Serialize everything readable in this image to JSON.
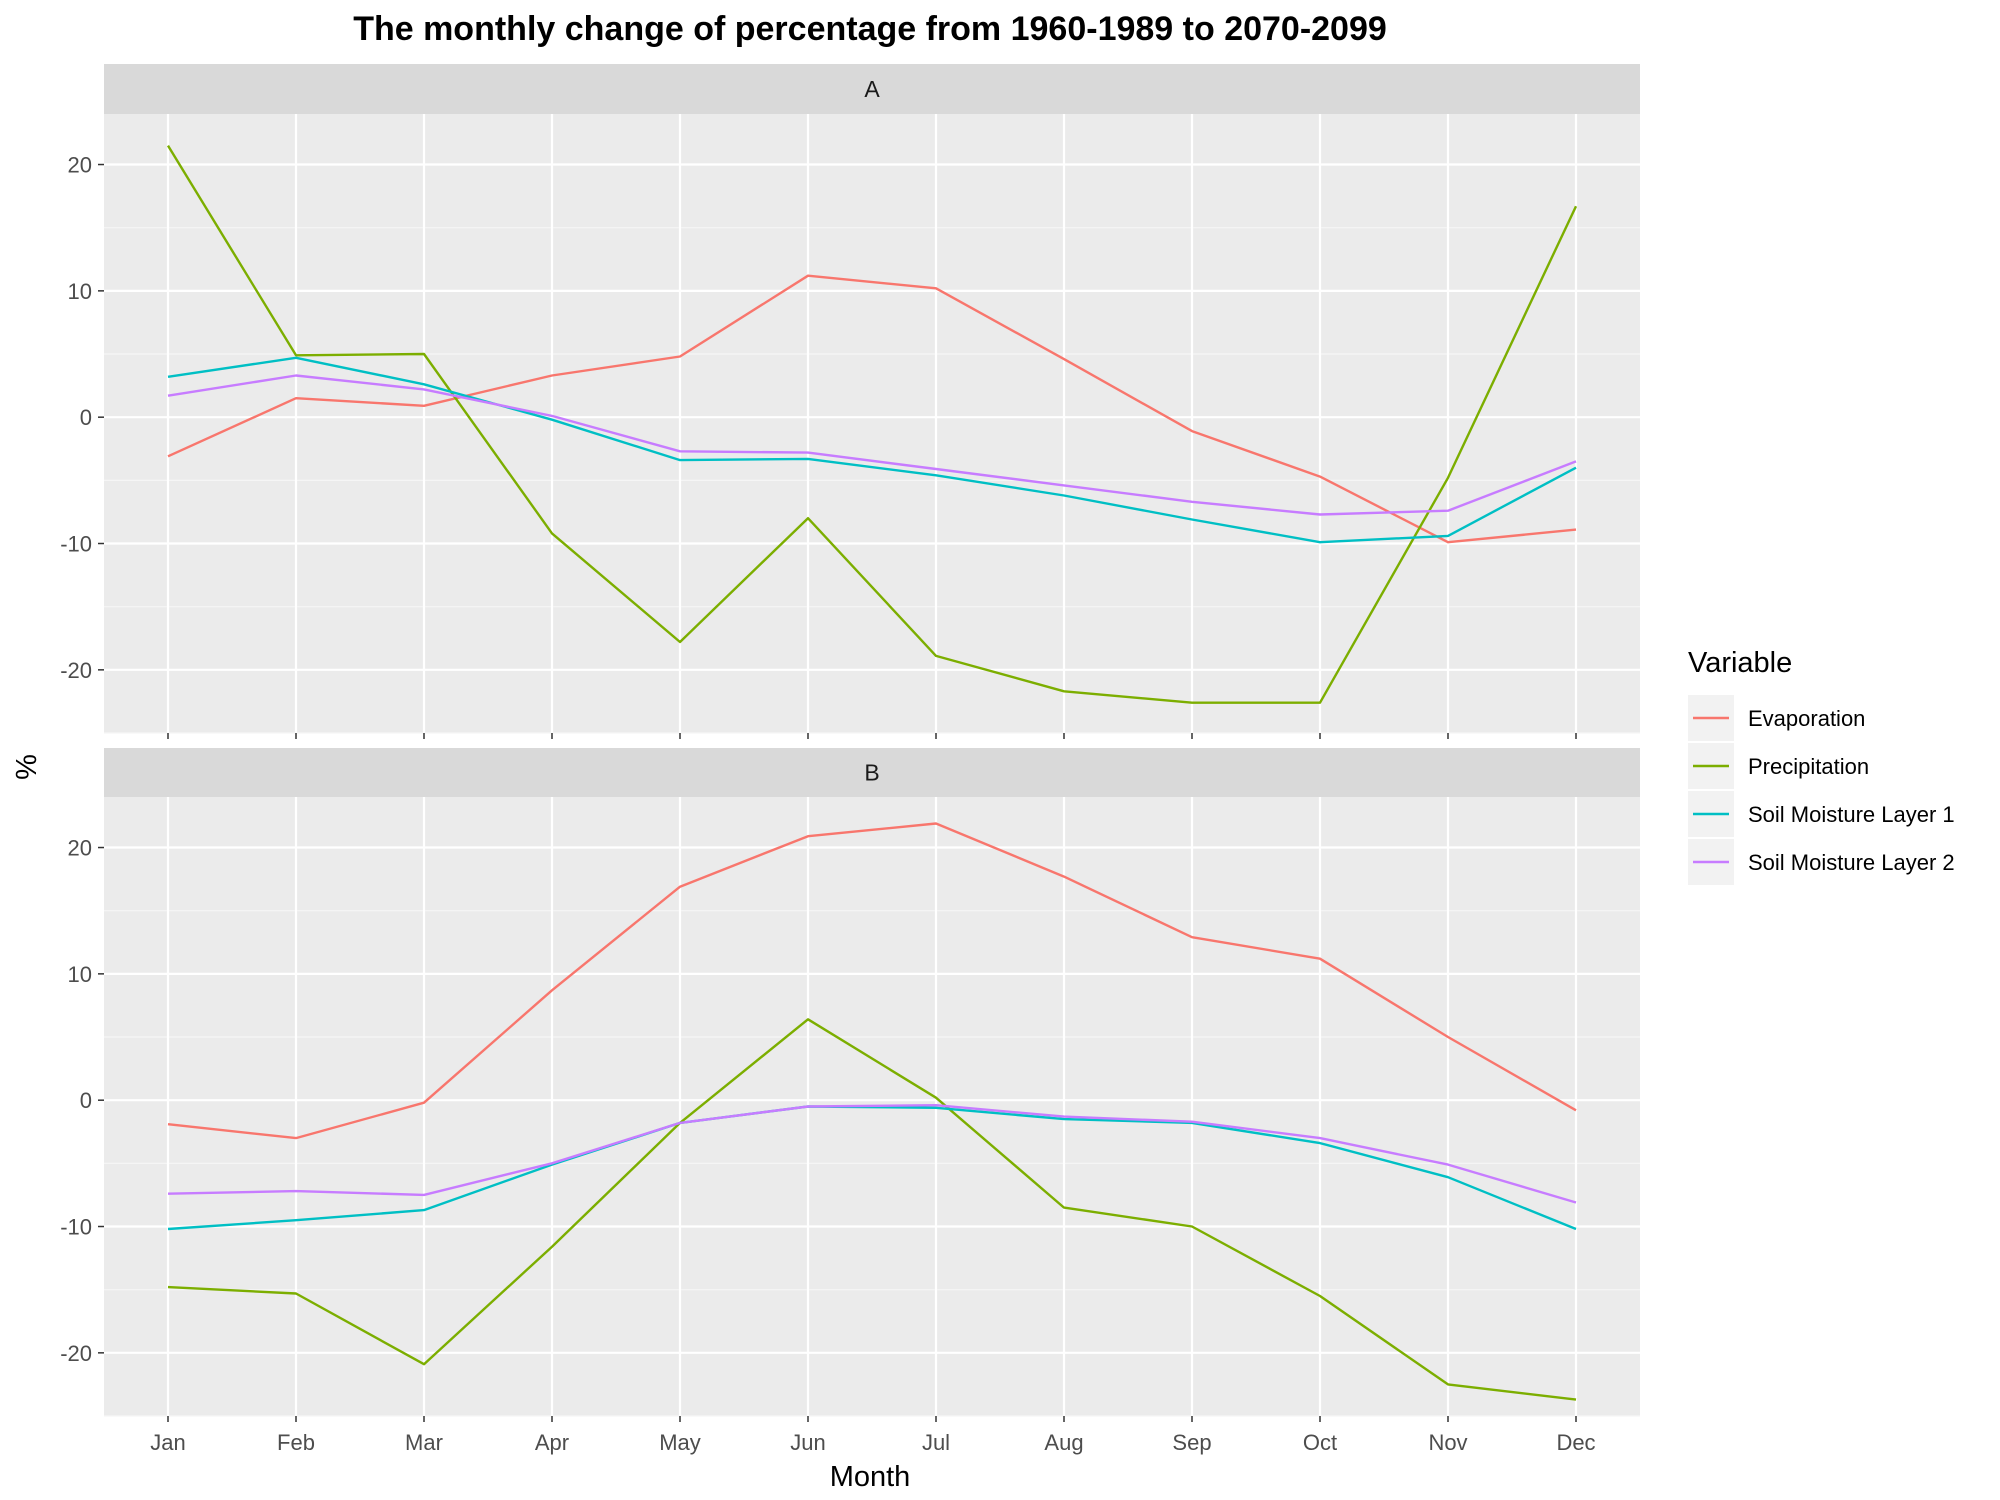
{
  "chart_data": {
    "type": "line",
    "title": "The monthly change of percentage from 1960-1989 to 2070-2099",
    "xlabel": "Month",
    "ylabel": "%",
    "ylim": [
      -25,
      24
    ],
    "yticks": [
      -20,
      -10,
      0,
      10,
      20
    ],
    "categories": [
      "Jan",
      "Feb",
      "Mar",
      "Apr",
      "May",
      "Jun",
      "Jul",
      "Aug",
      "Sep",
      "Oct",
      "Nov",
      "Dec"
    ],
    "legend": {
      "title": "Variable",
      "position": "right",
      "entries": [
        "Evaporation",
        "Precipitation",
        "Soil Moisture Layer 1",
        "Soil Moisture Layer 2"
      ]
    },
    "colors": [
      "#F8766D",
      "#7CAE00",
      "#00BFC4",
      "#C77CFF"
    ],
    "grid": true,
    "panels": [
      {
        "label": "A",
        "series": [
          {
            "name": "Evaporation",
            "values": [
              -3.1,
              1.5,
              0.9,
              3.3,
              4.8,
              11.2,
              10.2,
              4.6,
              -1.1,
              -4.7,
              -9.9,
              -8.9
            ]
          },
          {
            "name": "Precipitation",
            "values": [
              21.5,
              4.9,
              5.0,
              -9.2,
              -17.8,
              -8.0,
              -18.9,
              -21.7,
              -22.6,
              -22.6,
              -4.8,
              16.7
            ]
          },
          {
            "name": "Soil Moisture Layer 1",
            "values": [
              3.2,
              4.7,
              2.6,
              -0.2,
              -3.4,
              -3.3,
              -4.6,
              -6.2,
              -8.1,
              -9.9,
              -9.4,
              -4.0
            ]
          },
          {
            "name": "Soil Moisture Layer 2",
            "values": [
              1.7,
              3.3,
              2.2,
              0.1,
              -2.7,
              -2.8,
              -4.1,
              -5.4,
              -6.7,
              -7.7,
              -7.4,
              -3.5
            ]
          }
        ]
      },
      {
        "label": "B",
        "series": [
          {
            "name": "Evaporation",
            "values": [
              -1.9,
              -3.0,
              -0.2,
              8.7,
              16.9,
              20.9,
              21.9,
              17.7,
              12.9,
              11.2,
              5.0,
              -0.8
            ]
          },
          {
            "name": "Precipitation",
            "values": [
              -14.8,
              -15.3,
              -20.9,
              -11.6,
              -1.8,
              6.4,
              0.2,
              -8.5,
              -10.0,
              -15.5,
              -22.5,
              -23.7
            ]
          },
          {
            "name": "Soil Moisture Layer 1",
            "values": [
              -10.2,
              -9.5,
              -8.7,
              -5.1,
              -1.8,
              -0.5,
              -0.6,
              -1.5,
              -1.8,
              -3.4,
              -6.1,
              -10.2
            ]
          },
          {
            "name": "Soil Moisture Layer 2",
            "values": [
              -7.4,
              -7.2,
              -7.5,
              -5.0,
              -1.8,
              -0.5,
              -0.4,
              -1.3,
              -1.7,
              -3.0,
              -5.1,
              -8.1
            ]
          }
        ]
      }
    ]
  }
}
